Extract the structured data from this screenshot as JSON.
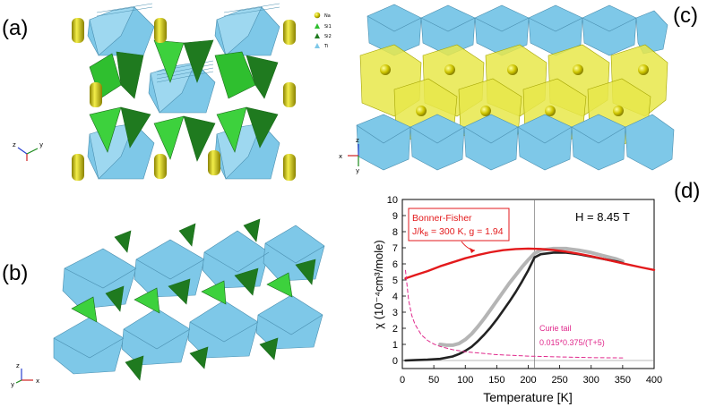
{
  "panels": {
    "a": "(a)",
    "b": "(b)",
    "c": "(c)",
    "d": "(d)"
  },
  "legend_a": {
    "items": [
      "Na",
      "Si1",
      "Si2",
      "Ti"
    ],
    "colors": [
      "#c9c200",
      "#2fbf2f",
      "#1f7a1f",
      "#7ec8e8"
    ]
  },
  "axes_a": {
    "z": "z",
    "y": "y",
    "x": "x"
  },
  "axes_b": {
    "z": "z",
    "y": "y",
    "x": "x"
  },
  "axes_c": {
    "z": "z",
    "x": "x",
    "y": "y"
  },
  "colors": {
    "ti_octahedron": "#7ec8e8",
    "na_polyhedron": "#e8e84a",
    "na_atom": "#c9c200",
    "si1": "#3dd13d",
    "si2": "#237a23",
    "bonner_fisher": "#e31a1c",
    "curie": "#e0298c",
    "data_dark": "#222222",
    "data_grey": "#b5b5b5"
  },
  "chart_data": {
    "type": "line",
    "xlabel": "Temperature [K]",
    "ylabel": "χ (10⁻⁴cm³/mole)",
    "xlim": [
      0,
      400
    ],
    "ylim": [
      -0.5,
      10
    ],
    "xticks": [
      "0",
      "50",
      "100",
      "150",
      "200",
      "250",
      "300",
      "350",
      "400"
    ],
    "yticks": [
      "0",
      "1",
      "2",
      "3",
      "4",
      "5",
      "6",
      "7",
      "8",
      "9",
      "10"
    ],
    "vertical_line_x": 210,
    "field_label": "H = 8.45 T",
    "bf_box_title": "Bonner-Fisher",
    "bf_box_line2": "J/k",
    "bf_box_sub": "B",
    "bf_box_rest": " = 300 K, g = 1.94",
    "curie_label": "Curie tail",
    "curie_formula": "0.015*0.375/(T+5)",
    "series": [
      {
        "name": "Bonner-Fisher",
        "style": "solid",
        "x": [
          5,
          20,
          40,
          60,
          80,
          100,
          120,
          140,
          160,
          180,
          200,
          220,
          240,
          260,
          280,
          300,
          320,
          340,
          360,
          380,
          400
        ],
        "y": [
          5.1,
          5.3,
          5.55,
          5.85,
          6.1,
          6.35,
          6.55,
          6.72,
          6.85,
          6.92,
          6.95,
          6.93,
          6.86,
          6.76,
          6.63,
          6.48,
          6.3,
          6.12,
          5.95,
          5.78,
          5.62
        ]
      },
      {
        "name": "measured (grey)",
        "style": "solid",
        "x": [
          60,
          70,
          80,
          90,
          100,
          110,
          120,
          130,
          140,
          150,
          160,
          170,
          180,
          190,
          200,
          210,
          220,
          240,
          260,
          280,
          300,
          320,
          340,
          350
        ],
        "y": [
          1.0,
          0.95,
          0.95,
          1.05,
          1.3,
          1.65,
          2.1,
          2.6,
          3.15,
          3.7,
          4.25,
          4.8,
          5.3,
          5.8,
          6.25,
          6.65,
          6.85,
          6.95,
          6.95,
          6.85,
          6.7,
          6.5,
          6.3,
          6.15
        ]
      },
      {
        "name": "measured (dark)",
        "style": "solid",
        "x": [
          5,
          20,
          40,
          60,
          80,
          90,
          100,
          110,
          120,
          130,
          140,
          150,
          160,
          170,
          180,
          190,
          200,
          205,
          210,
          220,
          240,
          260,
          280,
          300,
          320,
          340,
          350
        ],
        "y": [
          0.0,
          0.02,
          0.05,
          0.1,
          0.25,
          0.4,
          0.6,
          0.85,
          1.2,
          1.6,
          2.05,
          2.55,
          3.1,
          3.65,
          4.25,
          4.9,
          5.6,
          6.0,
          6.4,
          6.6,
          6.7,
          6.7,
          6.6,
          6.45,
          6.3,
          6.15,
          6.05
        ]
      },
      {
        "name": "Curie tail",
        "style": "dashed",
        "x": [
          5,
          10,
          15,
          20,
          30,
          40,
          50,
          60,
          80,
          100,
          150,
          200,
          250,
          300,
          350
        ],
        "y": [
          5.6,
          3.75,
          2.8,
          2.25,
          1.6,
          1.25,
          1.02,
          0.87,
          0.67,
          0.54,
          0.36,
          0.27,
          0.22,
          0.18,
          0.16
        ]
      }
    ]
  }
}
